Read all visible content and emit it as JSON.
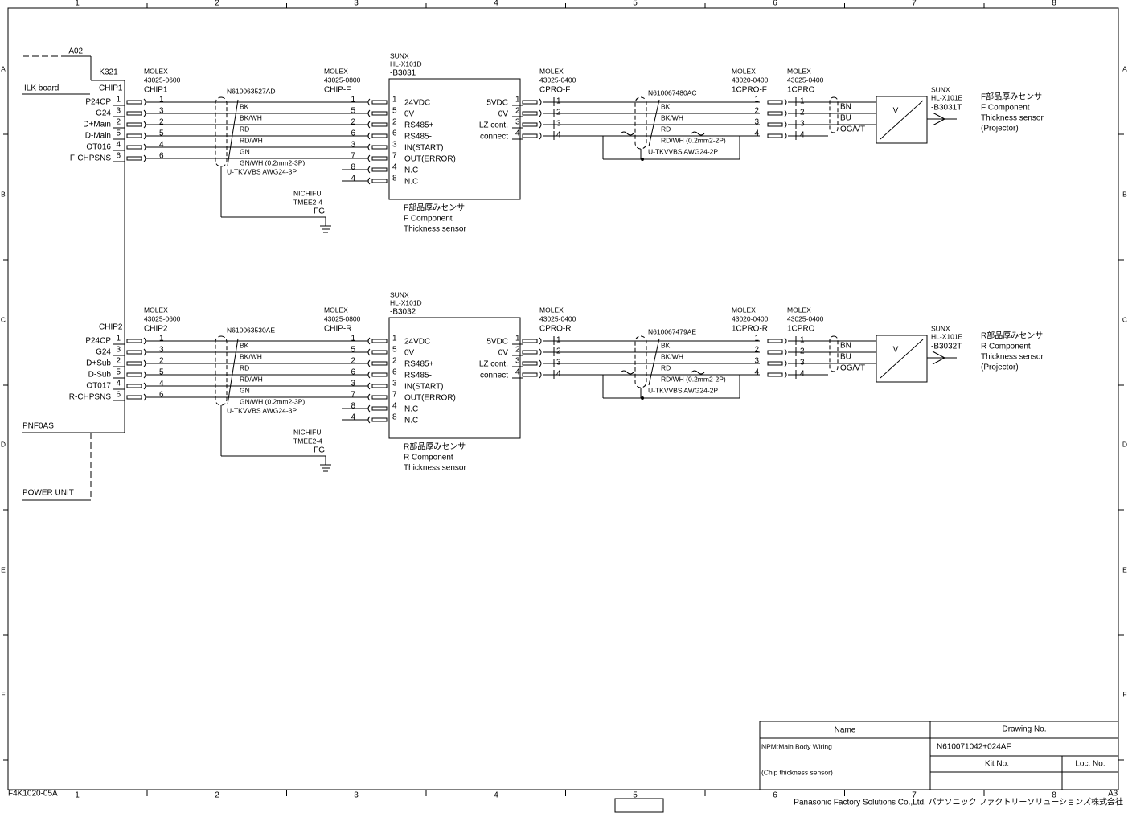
{
  "frame": {
    "columns": [
      "1",
      "2",
      "3",
      "4",
      "5",
      "6",
      "7",
      "8"
    ],
    "rows": [
      "A",
      "B",
      "C",
      "D",
      "E",
      "F"
    ],
    "sheet_code": "F4K1020-05A",
    "size": "A3"
  },
  "power": {
    "a02": "-A02",
    "k321": "-K321",
    "ilk_board": "ILK board",
    "pnf0as": "PNF0AS",
    "power_unit": "POWER UNIT"
  },
  "sections": [
    {
      "board_connector": "CHIP1",
      "board_pins": [
        {
          "label": "P24CP",
          "pin": "1"
        },
        {
          "label": "G24",
          "pin": "3"
        },
        {
          "label": "D+Main",
          "pin": "2"
        },
        {
          "label": "D-Main",
          "pin": "5"
        },
        {
          "label": "OT016",
          "pin": "4"
        },
        {
          "label": "F-CHPSNS",
          "pin": "6"
        }
      ],
      "chip": {
        "maker": "MOLEX",
        "model": "43025-0600",
        "name": "CHIP1",
        "pins": [
          "1",
          "3",
          "2",
          "5",
          "4",
          "6"
        ]
      },
      "cable1": {
        "id": "N610063527AD",
        "wires": [
          "BK",
          "BK/WH",
          "RD",
          "RD/WH",
          "GN",
          "GN/WH (0.2mm2-3P)"
        ],
        "type": "U-TKVVBS AWG24-3P"
      },
      "fg": {
        "maker": "NICHIFU",
        "model": "TMEE2-4",
        "name": "FG"
      },
      "sensor_connector": {
        "maker": "MOLEX",
        "model": "43025-0800",
        "name": "CHIP-F",
        "left_pins": [
          "1",
          "5",
          "2",
          "6",
          "3",
          "7",
          "8",
          "4"
        ],
        "right_pins": [
          "1",
          "5",
          "2",
          "6",
          "3",
          "7",
          "4",
          "8"
        ]
      },
      "sensor": {
        "maker": "SUNX",
        "model": "HL-X101D",
        "id": "-B3031",
        "inputs": [
          "24VDC",
          "0V",
          "RS485+",
          "RS485-",
          "IN(START)",
          "OUT(ERROR)",
          "N.C",
          "N.C"
        ],
        "outputs": [
          "5VDC",
          "0V",
          "LZ cont.",
          "connect"
        ],
        "caption": [
          "F部品厚みセンサ",
          "F Component",
          "Thickness sensor"
        ]
      },
      "cpro": {
        "maker": "MOLEX",
        "model": "43025-0400",
        "name": "CPRO-F",
        "left_pins": [
          "1",
          "2",
          "3",
          "4"
        ],
        "right_pins": [
          "1",
          "2",
          "3",
          "4"
        ]
      },
      "cable2": {
        "id": "N610067480AC",
        "wires": [
          "BK",
          "BK/WH",
          "RD",
          "RD/WH (0.2mm2-2P)"
        ],
        "type": "U-TKVVBS AWG24-2P"
      },
      "relay_a": {
        "maker": "MOLEX",
        "model": "43020-0400",
        "name": "1CPRO-F",
        "pins": [
          "1",
          "2",
          "3",
          "4"
        ]
      },
      "relay_b": {
        "maker": "MOLEX",
        "model": "43025-0400",
        "name": "1CPRO",
        "pins": [
          "1",
          "2",
          "3",
          "4"
        ]
      },
      "projector_wires": [
        "BN",
        "BU",
        "OG/VT"
      ],
      "projector": {
        "symbol": "V",
        "maker": "SUNX",
        "model": "HL-X101E",
        "id": "-B3031T",
        "caption": [
          "F部品厚みセンサ",
          "F Component",
          "Thickness sensor",
          "(Projector)"
        ]
      }
    },
    {
      "board_connector": "CHIP2",
      "board_pins": [
        {
          "label": "P24CP",
          "pin": "1"
        },
        {
          "label": "G24",
          "pin": "3"
        },
        {
          "label": "D+Sub",
          "pin": "2"
        },
        {
          "label": "D-Sub",
          "pin": "5"
        },
        {
          "label": "OT017",
          "pin": "4"
        },
        {
          "label": "R-CHPSNS",
          "pin": "6"
        }
      ],
      "chip": {
        "maker": "MOLEX",
        "model": "43025-0600",
        "name": "CHIP2",
        "pins": [
          "1",
          "3",
          "2",
          "5",
          "4",
          "6"
        ]
      },
      "cable1": {
        "id": "N610063530AE",
        "wires": [
          "BK",
          "BK/WH",
          "RD",
          "RD/WH",
          "GN",
          "GN/WH (0.2mm2-3P)"
        ],
        "type": "U-TKVVBS AWG24-3P"
      },
      "fg": {
        "maker": "NICHIFU",
        "model": "TMEE2-4",
        "name": "FG"
      },
      "sensor_connector": {
        "maker": "MOLEX",
        "model": "43025-0800",
        "name": "CHIP-R",
        "left_pins": [
          "1",
          "5",
          "2",
          "6",
          "3",
          "7",
          "8",
          "4"
        ],
        "right_pins": [
          "1",
          "5",
          "2",
          "6",
          "3",
          "7",
          "4",
          "8"
        ]
      },
      "sensor": {
        "maker": "SUNX",
        "model": "HL-X101D",
        "id": "-B3032",
        "inputs": [
          "24VDC",
          "0V",
          "RS485+",
          "RS485-",
          "IN(START)",
          "OUT(ERROR)",
          "N.C",
          "N.C"
        ],
        "outputs": [
          "5VDC",
          "0V",
          "LZ cont.",
          "connect"
        ],
        "caption": [
          "R部品厚みセンサ",
          "R Component",
          "Thickness sensor"
        ]
      },
      "cpro": {
        "maker": "MOLEX",
        "model": "43025-0400",
        "name": "CPRO-R",
        "left_pins": [
          "1",
          "2",
          "3",
          "4"
        ],
        "right_pins": [
          "1",
          "2",
          "3",
          "4"
        ]
      },
      "cable2": {
        "id": "N610067479AE",
        "wires": [
          "BK",
          "BK/WH",
          "RD",
          "RD/WH (0.2mm2-2P)"
        ],
        "type": "U-TKVVBS AWG24-2P"
      },
      "relay_a": {
        "maker": "MOLEX",
        "model": "43020-0400",
        "name": "1CPRO-R",
        "pins": [
          "1",
          "2",
          "3",
          "4"
        ]
      },
      "relay_b": {
        "maker": "MOLEX",
        "model": "43025-0400",
        "name": "1CPRO",
        "pins": [
          "1",
          "2",
          "3",
          "4"
        ]
      },
      "projector_wires": [
        "BN",
        "BU",
        "OG/VT"
      ],
      "projector": {
        "symbol": "V",
        "maker": "SUNX",
        "model": "HL-X101E",
        "id": "-B3032T",
        "caption": [
          "R部品厚みセンサ",
          "R Component",
          "Thickness sensor",
          "(Projector)"
        ]
      }
    }
  ],
  "title_block": {
    "name_header": "Name",
    "drawing_header": "Drawing No.",
    "name_line1": "NPM:Main Body Wiring",
    "name_line2": "(Chip thickness sensor)",
    "drawing_no": "N610071042+024AF",
    "kit_header": "Kit No.",
    "loc_header": "Loc. No."
  },
  "company": "Panasonic Factory Solutions Co.,Ltd. パナソニック ファクトリーソリューションズ株式会社"
}
